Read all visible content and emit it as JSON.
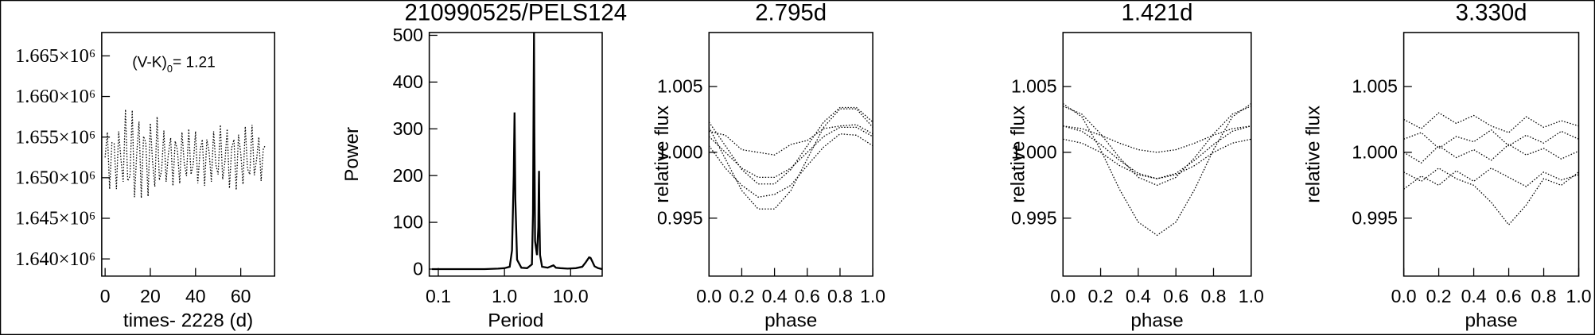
{
  "chart_data": [
    {
      "type": "line",
      "xlabel": "times- 2228 (d)",
      "color": "#000000",
      "line_style": "dotted",
      "annotation_main": "(V-K)",
      "annotation_subscript": "0",
      "annotation_value": "= 1.21",
      "xlim": [
        -1.5,
        75
      ],
      "xticks": [
        0,
        20,
        40,
        60
      ],
      "ylim": [
        1637880,
        1667880
      ],
      "yticks": [
        {
          "value": 1640000,
          "label": "1.640×10⁶"
        },
        {
          "value": 1645000,
          "label": "1.645×10⁶"
        },
        {
          "value": 1650000,
          "label": "1.650×10⁶"
        },
        {
          "value": 1655000,
          "label": "1.655×10⁶"
        },
        {
          "value": 1660000,
          "label": "1.660×10⁶"
        },
        {
          "value": 1665000,
          "label": "1.665×10⁶"
        }
      ],
      "x": [
        0,
        1,
        2,
        3,
        4,
        5,
        6,
        7,
        8,
        9,
        10,
        11,
        12,
        13,
        14,
        15,
        16,
        17,
        18,
        19,
        20,
        21,
        22,
        23,
        24,
        25,
        26,
        27,
        28,
        29,
        30,
        31,
        32,
        33,
        34,
        35,
        36,
        37,
        38,
        39,
        40,
        41,
        42,
        43,
        44,
        45,
        46,
        47,
        48,
        49,
        50,
        51,
        52,
        53,
        54,
        55,
        56,
        57,
        58,
        59,
        60,
        61,
        62,
        63,
        64,
        65,
        66,
        67,
        68,
        69,
        70,
        71
      ],
      "values": [
        1652500,
        1655600,
        1648600,
        1654300,
        1654200,
        1648600,
        1655700,
        1652300,
        1649500,
        1658400,
        1649600,
        1650200,
        1658300,
        1647600,
        1653000,
        1656900,
        1647500,
        1655100,
        1654300,
        1647700,
        1656700,
        1651900,
        1648900,
        1657500,
        1649700,
        1650900,
        1655800,
        1649500,
        1653000,
        1654900,
        1649000,
        1654500,
        1653400,
        1649300,
        1655600,
        1651800,
        1650200,
        1656000,
        1650400,
        1651700,
        1655700,
        1649300,
        1653300,
        1654700,
        1649000,
        1654700,
        1653200,
        1649500,
        1655700,
        1651600,
        1650400,
        1656500,
        1649800,
        1651900,
        1656000,
        1648700,
        1653700,
        1654700,
        1648500,
        1655300,
        1653000,
        1649200,
        1656300,
        1651100,
        1650400,
        1656500,
        1650300,
        1652200,
        1655000,
        1649600,
        1653600,
        1654000
      ]
    },
    {
      "type": "line",
      "title": "210990525/PELS124",
      "xlabel": "Period",
      "ylabel": "Power",
      "color": "#000000",
      "line_style": "solid",
      "xlog": true,
      "xlim": [
        0.073,
        30
      ],
      "xticks": [
        0.1,
        {
          "value": 1,
          "label": "1.0"
        },
        {
          "value": 10,
          "label": "10.0"
        }
      ],
      "ylim": [
        -15,
        506
      ],
      "yticks": [
        0,
        100,
        200,
        300,
        400,
        500
      ],
      "x": [
        0.08,
        0.2,
        0.5,
        0.8,
        1.0,
        1.2,
        1.3,
        1.38,
        1.42,
        1.46,
        1.55,
        1.8,
        2.2,
        2.6,
        2.7,
        2.76,
        2.795,
        2.83,
        2.9,
        3.1,
        3.25,
        3.3,
        3.33,
        3.37,
        3.45,
        3.7,
        4.5,
        5.5,
        6,
        7,
        9,
        12,
        15,
        17,
        19,
        20,
        21,
        23,
        26,
        30
      ],
      "values": [
        0,
        0,
        0,
        1,
        2,
        5,
        40,
        200,
        335,
        150,
        20,
        3,
        2,
        10,
        120,
        380,
        505,
        300,
        60,
        30,
        90,
        180,
        210,
        120,
        30,
        5,
        3,
        8,
        3,
        2,
        1,
        2,
        5,
        15,
        25,
        24,
        18,
        6,
        2,
        0
      ]
    },
    {
      "type": "line",
      "title": "2.795d",
      "xlabel": "phase",
      "ylabel": "relative flux",
      "color": "#000000",
      "line_style": "dotted",
      "xlim": [
        0,
        1
      ],
      "xticks": [
        {
          "value": 0,
          "label": "0.0"
        },
        0.2,
        0.4,
        0.6,
        0.8,
        {
          "value": 1,
          "label": "1.0"
        }
      ],
      "ylim": [
        0.9906,
        1.0091
      ],
      "yticks": [
        0.995,
        {
          "value": 1,
          "label": "1.000"
        },
        1.005
      ],
      "x": [
        0,
        0.1,
        0.2,
        0.3,
        0.4,
        0.5,
        0.6,
        0.7,
        0.8,
        0.9,
        1
      ],
      "series": [
        {
          "values": [
            1.0012,
            1.0,
            0.9988,
            0.9981,
            0.9981,
            0.9988,
            1.0,
            1.0012,
            1.0019,
            1.0019,
            1.0012
          ]
        },
        {
          "values": [
            1.0023,
            1.0005,
            0.9987,
            0.9976,
            0.9976,
            0.9987,
            1.0005,
            1.0023,
            1.0034,
            1.0034,
            1.0023
          ]
        },
        {
          "values": [
            1.0019,
            0.9995,
            0.9971,
            0.9957,
            0.9957,
            0.9971,
            0.9995,
            1.0019,
            1.0033,
            1.0033,
            1.0019
          ]
        },
        {
          "values": [
            1.0016,
            1.0013,
            1.0002,
            1.0,
            0.9998,
            1.0006,
            1.0009,
            1.0018,
            1.002,
            1.0021,
            1.0014
          ]
        },
        {
          "values": [
            1.0005,
            0.9988,
            0.9975,
            0.9966,
            0.9968,
            0.9975,
            0.999,
            1.0004,
            1.0014,
            1.0013,
            1.0005
          ]
        }
      ]
    },
    {
      "type": "line",
      "title": "1.421d",
      "xlabel": "phase",
      "ylabel": "relative flux",
      "color": "#000000",
      "line_style": "dotted",
      "xlim": [
        0,
        1
      ],
      "xticks": [
        {
          "value": 0,
          "label": "0.0"
        },
        0.2,
        0.4,
        0.6,
        0.8,
        {
          "value": 1,
          "label": "1.0"
        }
      ],
      "ylim": [
        0.9906,
        1.0091
      ],
      "yticks": [
        0.995,
        {
          "value": 1,
          "label": "1.000"
        },
        1.005
      ],
      "x": [
        0,
        0.1,
        0.2,
        0.3,
        0.4,
        0.5,
        0.6,
        0.7,
        0.8,
        0.9,
        1
      ],
      "series": [
        {
          "values": [
            1.002,
            1.0016,
            1.0006,
            0.9994,
            0.9984,
            0.998,
            0.9984,
            0.9994,
            1.0006,
            1.0016,
            1.002
          ]
        },
        {
          "values": [
            1.0035,
            1.0029,
            1.0014,
            0.9996,
            0.9981,
            0.9975,
            0.9981,
            0.9996,
            1.0014,
            1.0029,
            1.0035
          ]
        },
        {
          "values": [
            1.0037,
            1.0027,
            1.0002,
            0.9972,
            0.9947,
            0.9937,
            0.9947,
            0.9972,
            1.0002,
            1.0027,
            1.0037
          ]
        },
        {
          "values": [
            1.002,
            1.0018,
            1.0013,
            1.0007,
            1.0002,
            1.0,
            1.0002,
            1.0007,
            1.0013,
            1.0018,
            1.002
          ]
        },
        {
          "values": [
            1.001,
            1.0007,
            1.0,
            0.999,
            0.9983,
            0.998,
            0.9983,
            0.999,
            1.0,
            1.0007,
            1.001
          ]
        }
      ]
    },
    {
      "type": "line",
      "title": "3.330d",
      "xlabel": "phase",
      "ylabel": "relative flux",
      "color": "#000000",
      "line_style": "dotted",
      "xlim": [
        0,
        1
      ],
      "xticks": [
        {
          "value": 0,
          "label": "0.0"
        },
        0.2,
        0.4,
        0.6,
        0.8,
        {
          "value": 1,
          "label": "1.0"
        }
      ],
      "ylim": [
        0.9906,
        1.0091
      ],
      "yticks": [
        0.995,
        {
          "value": 1,
          "label": "1.000"
        },
        1.005
      ],
      "x": [
        0,
        0.1,
        0.2,
        0.3,
        0.4,
        0.5,
        0.6,
        0.7,
        0.8,
        0.9,
        1
      ],
      "series": [
        {
          "values": [
            1.0025,
            1.0018,
            1.003,
            1.0022,
            1.0028,
            1.002,
            1.0015,
            1.0027,
            1.0019,
            1.0024,
            1.002
          ]
        },
        {
          "values": [
            1.0,
            0.9992,
            1.0005,
            0.9996,
            1.0002,
            0.9994,
            1.0006,
            0.9998,
            1.0003,
            0.9995,
            1.0001
          ]
        },
        {
          "values": [
            0.9985,
            0.9978,
            0.9988,
            0.998,
            0.9975,
            0.9962,
            0.9945,
            0.996,
            0.998,
            0.9975,
            0.9985
          ]
        },
        {
          "values": [
            1.001,
            1.0015,
            1.0003,
            1.0012,
            1.0008,
            1.0017,
            1.0005,
            1.0013,
            1.0007,
            1.0016,
            1.001
          ]
        },
        {
          "values": [
            0.9972,
            0.9982,
            0.9975,
            0.9986,
            0.9978,
            0.9988,
            0.9981,
            0.9974,
            0.9985,
            0.9979,
            0.9983
          ]
        }
      ]
    }
  ]
}
